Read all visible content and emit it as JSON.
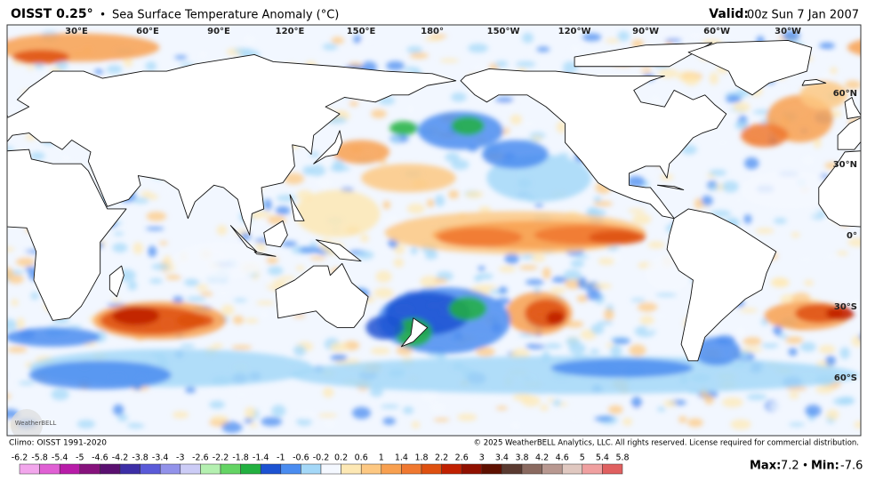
{
  "header": {
    "title": "OISST 0.25°",
    "separator": "•",
    "subtitle": "Sea Surface Temperature Anomaly (°C)",
    "valid_label": "Valid:",
    "valid_time": "00z Sun 7 Jan 2007"
  },
  "map": {
    "lon_labels": [
      "30°E",
      "60°E",
      "90°E",
      "120°E",
      "150°E",
      "180°",
      "150°W",
      "120°W",
      "90°W",
      "60°W",
      "30°W"
    ],
    "lat_labels": [
      "60°N",
      "30°N",
      "0°",
      "30°S",
      "60°S"
    ],
    "logo": "WeatherBELL"
  },
  "footer": {
    "climo": "Climo: OISST 1991-2020",
    "copyright": "© 2025 WeatherBELL Analytics, LLC. All rights reserved. License required for commercial distribution."
  },
  "legend": {
    "labels": [
      -6.2,
      -5.8,
      -5.4,
      -5,
      -4.6,
      -4.2,
      -3.8,
      -3.4,
      -3,
      -2.6,
      -2.2,
      -1.8,
      -1.4,
      -1,
      -0.6,
      -0.2,
      0.2,
      0.6,
      1,
      1.4,
      1.8,
      2.2,
      2.6,
      3,
      3.4,
      3.8,
      4.2,
      4.6,
      5,
      5.4,
      5.8
    ],
    "colors": [
      "#f2a6ec",
      "#e060d4",
      "#b81ca8",
      "#86127c",
      "#5a1070",
      "#3c2ea6",
      "#5a5ad8",
      "#9292ea",
      "#ccccf6",
      "#b4f0b0",
      "#64d464",
      "#22b040",
      "#1c52d2",
      "#4a8cf0",
      "#a4d8f8",
      "#f4f8ff",
      "#fde8b4",
      "#fdc882",
      "#f8a050",
      "#f07830",
      "#de5010",
      "#c02000",
      "#901000",
      "#5e1000",
      "#5a3a30",
      "#8a6a60",
      "#b89890",
      "#e0c8c0",
      "#f0a0a0",
      "#e06060"
    ]
  },
  "stats": {
    "max_label": "Max:",
    "max": 7.2,
    "separator": "•",
    "min_label": "Min:",
    "min": -7.6
  }
}
